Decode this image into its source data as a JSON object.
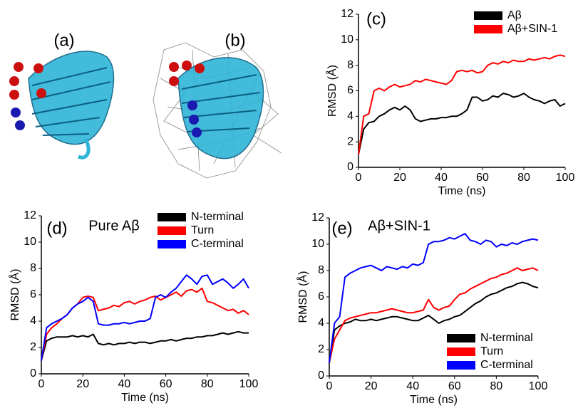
{
  "images": [
    {
      "label": "(a)"
    },
    {
      "label": "(b)"
    }
  ],
  "chart_data": [
    {
      "type": "line",
      "title": "(c)",
      "xlabel": "Time (ns)",
      "ylabel": "RMSD (Å)",
      "legend": "upper right",
      "xlim": [
        0,
        100
      ],
      "xticks": [
        0,
        20,
        40,
        60,
        80,
        100
      ],
      "ylim": [
        0,
        12
      ],
      "yticks": [
        0,
        2,
        4,
        6,
        8,
        10,
        12
      ],
      "x": [
        0,
        2.5,
        5,
        7.5,
        10,
        12.5,
        15,
        17.5,
        20,
        22.5,
        25,
        27.5,
        30,
        32.5,
        35,
        37.5,
        40,
        42.5,
        45,
        47.5,
        50,
        52.5,
        55,
        57.5,
        60,
        62.5,
        65,
        67.5,
        70,
        72.5,
        75,
        77.5,
        80,
        82.5,
        85,
        87.5,
        90,
        92.5,
        95,
        97.5,
        100
      ],
      "series": [
        {
          "name": "Aβ",
          "color": "#000000",
          "values": [
            1,
            3,
            3.5,
            3.6,
            4.0,
            4.2,
            4.5,
            4.7,
            4.5,
            4.8,
            4.5,
            3.8,
            3.6,
            3.7,
            3.8,
            3.8,
            3.9,
            3.9,
            4.0,
            4.0,
            4.2,
            4.5,
            5.5,
            5.5,
            5.2,
            5.3,
            5.6,
            5.5,
            5.8,
            5.7,
            5.5,
            5.6,
            5.8,
            5.5,
            5.3,
            5.2,
            5.0,
            5.2,
            5.3,
            4.8,
            5.0
          ]
        },
        {
          "name": "Aβ+SIN-1",
          "color": "#ff0000",
          "values": [
            1,
            4,
            4.2,
            6,
            6.2,
            6.0,
            6.3,
            6.5,
            6.3,
            6.4,
            6.5,
            6.8,
            6.7,
            6.9,
            6.8,
            6.7,
            6.6,
            6.5,
            6.8,
            7.5,
            7.6,
            7.5,
            7.6,
            7.4,
            7.5,
            8.0,
            8.2,
            8.1,
            8.3,
            8.2,
            8.4,
            8.3,
            8.3,
            8.5,
            8.4,
            8.5,
            8.6,
            8.5,
            8.7,
            8.8,
            8.7
          ]
        }
      ]
    },
    {
      "type": "line",
      "title": "(d)",
      "subtitle": "Pure Aβ",
      "xlabel": "Time (ns)",
      "ylabel": "RMSD (Å)",
      "legend": "upper right",
      "xlim": [
        0,
        100
      ],
      "xticks": [
        0,
        20,
        40,
        60,
        80,
        100
      ],
      "ylim": [
        0,
        12
      ],
      "yticks": [
        0,
        2,
        4,
        6,
        8,
        10,
        12
      ],
      "x": [
        0,
        2.5,
        5,
        7.5,
        10,
        12.5,
        15,
        17.5,
        20,
        22.5,
        25,
        27.5,
        30,
        32.5,
        35,
        37.5,
        40,
        42.5,
        45,
        47.5,
        50,
        52.5,
        55,
        57.5,
        60,
        62.5,
        65,
        67.5,
        70,
        72.5,
        75,
        77.5,
        80,
        82.5,
        85,
        87.5,
        90,
        92.5,
        95,
        97.5,
        100
      ],
      "series": [
        {
          "name": "N-terminal",
          "color": "#000000",
          "values": [
            1,
            2.5,
            2.7,
            2.8,
            2.8,
            2.8,
            2.9,
            2.8,
            2.9,
            2.8,
            3.0,
            2.3,
            2.2,
            2.3,
            2.2,
            2.3,
            2.3,
            2.4,
            2.3,
            2.4,
            2.4,
            2.3,
            2.4,
            2.5,
            2.5,
            2.6,
            2.5,
            2.6,
            2.7,
            2.7,
            2.8,
            2.8,
            2.9,
            2.9,
            3.0,
            3.1,
            3.0,
            3.1,
            3.2,
            3.1,
            3.1
          ]
        },
        {
          "name": "Turn",
          "color": "#ff0000",
          "values": [
            1,
            3.0,
            3.5,
            3.8,
            4.2,
            4.5,
            5.0,
            5.3,
            5.8,
            5.9,
            5.8,
            4.8,
            4.9,
            5.0,
            5.2,
            5.1,
            5.4,
            5.5,
            5.3,
            5.5,
            5.6,
            5.8,
            5.9,
            5.6,
            5.8,
            6.0,
            6.2,
            5.9,
            6.3,
            6.4,
            6.2,
            6.5,
            5.5,
            5.4,
            5.2,
            5.0,
            4.8,
            4.9,
            4.6,
            4.8,
            4.5
          ]
        },
        {
          "name": "C-terminal",
          "color": "#0000ff",
          "values": [
            1,
            3.5,
            3.8,
            4.0,
            4.2,
            4.5,
            5.0,
            5.3,
            5.5,
            5.8,
            5.5,
            3.8,
            3.7,
            3.7,
            3.8,
            3.8,
            3.9,
            3.8,
            3.9,
            4.0,
            4.0,
            4.2,
            5.8,
            6.0,
            5.8,
            6.2,
            6.5,
            7.0,
            7.5,
            7.2,
            6.8,
            7.4,
            7.5,
            6.8,
            7.0,
            7.2,
            6.9,
            6.5,
            6.8,
            7.2,
            6.5
          ]
        }
      ]
    },
    {
      "type": "line",
      "title": "(e)",
      "subtitle": "Aβ+SIN-1",
      "xlabel": "Time (ns)",
      "ylabel": "RMSD (Å)",
      "legend": "lower right",
      "xlim": [
        0,
        100
      ],
      "xticks": [
        0,
        20,
        40,
        60,
        80,
        100
      ],
      "ylim": [
        0,
        12
      ],
      "yticks": [
        0,
        2,
        4,
        6,
        8,
        10,
        12
      ],
      "x": [
        0,
        2.5,
        5,
        7.5,
        10,
        12.5,
        15,
        17.5,
        20,
        22.5,
        25,
        27.5,
        30,
        32.5,
        35,
        37.5,
        40,
        42.5,
        45,
        47.5,
        50,
        52.5,
        55,
        57.5,
        60,
        62.5,
        65,
        67.5,
        70,
        72.5,
        75,
        77.5,
        80,
        82.5,
        85,
        87.5,
        90,
        92.5,
        95,
        97.5,
        100
      ],
      "series": [
        {
          "name": "N-terminal",
          "color": "#000000",
          "values": [
            1,
            3.5,
            3.8,
            4.0,
            4.1,
            4.3,
            4.2,
            4.2,
            4.3,
            4.2,
            4.3,
            4.4,
            4.5,
            4.5,
            4.4,
            4.3,
            4.2,
            4.2,
            4.4,
            4.6,
            4.3,
            4.0,
            4.2,
            4.3,
            4.5,
            4.6,
            4.9,
            5.2,
            5.5,
            5.7,
            6.0,
            6.2,
            6.3,
            6.5,
            6.7,
            6.8,
            7.0,
            7.1,
            7.0,
            6.8,
            6.7
          ]
        },
        {
          "name": "Turn",
          "color": "#ff0000",
          "values": [
            1,
            2.8,
            3.5,
            4.2,
            4.4,
            4.5,
            4.6,
            4.7,
            4.8,
            4.8,
            4.9,
            5.0,
            5.1,
            5.0,
            4.9,
            4.8,
            4.8,
            4.9,
            5.0,
            5.8,
            5.2,
            5.0,
            5.2,
            5.3,
            5.8,
            6.2,
            6.3,
            6.6,
            6.8,
            7.0,
            7.2,
            7.4,
            7.5,
            7.7,
            7.8,
            8.0,
            8.2,
            8.0,
            8.1,
            8.2,
            8.0
          ]
        },
        {
          "name": "C-terminal",
          "color": "#0000ff",
          "values": [
            1,
            4.0,
            4.5,
            7.5,
            7.8,
            8.0,
            8.2,
            8.3,
            8.4,
            8.2,
            8.0,
            8.3,
            8.2,
            8.1,
            8.3,
            8.2,
            8.5,
            8.4,
            8.6,
            10.0,
            10.2,
            10.2,
            10.3,
            10.5,
            10.4,
            10.6,
            10.8,
            10.3,
            10.2,
            10.0,
            10.3,
            10.2,
            9.8,
            10.0,
            9.9,
            10.1,
            10.0,
            10.2,
            10.3,
            10.4,
            10.3
          ]
        }
      ]
    }
  ]
}
